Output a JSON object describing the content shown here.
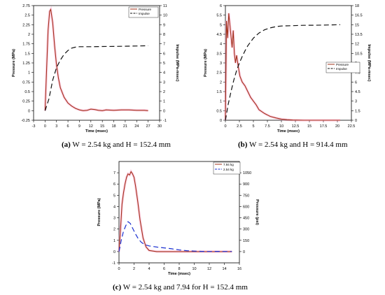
{
  "captions": [
    {
      "letter": "(a)",
      "text": "W = 2.54 kg and H = 152.4 mm"
    },
    {
      "letter": "(b)",
      "text": "W = 2.54 kg and H = 914.4 mm"
    },
    {
      "letter": "(c)",
      "text": "W = 2.54 kg and 7.94 for H = 152.4 mm"
    }
  ],
  "colors": {
    "pressure": "#a0301a",
    "impulse": "#111111",
    "series_794": "#a0301a",
    "series_254": "#1a2fd0",
    "glow": "#ff9fc8"
  },
  "chart_data": [
    {
      "type": "line",
      "xlabel": "Time (msec)",
      "ylabel": "Pressure (MPa)",
      "y2label": "Impulse (MPa-msec)",
      "xlim": [
        -3,
        30
      ],
      "xticks": [
        -3,
        0,
        3,
        6,
        9,
        12,
        15,
        18,
        21,
        24,
        27,
        30
      ],
      "ylim": [
        -0.25,
        2.75
      ],
      "yticks": [
        -0.25,
        0,
        0.25,
        0.5,
        0.75,
        1,
        1.25,
        1.5,
        1.75,
        2,
        2.25,
        2.5,
        2.75
      ],
      "y2lim": [
        -1,
        11
      ],
      "y2ticks": [
        -1,
        0,
        1,
        2,
        3,
        4,
        5,
        6,
        7,
        8,
        9,
        10,
        11
      ],
      "legend_position": "top-right",
      "series": [
        {
          "name": "Pressure",
          "axis": "left",
          "style": "solid",
          "colorKey": "pressure",
          "x": [
            0,
            0.3,
            0.8,
            1.2,
            1.5,
            2,
            2.5,
            3,
            3.5,
            4,
            5,
            6,
            7,
            8,
            9,
            10,
            11,
            12,
            13,
            14,
            15,
            16,
            18,
            20,
            22,
            24,
            26,
            27
          ],
          "y": [
            0,
            0.8,
            2.1,
            2.6,
            2.65,
            2.3,
            1.7,
            1.2,
            0.85,
            0.6,
            0.35,
            0.2,
            0.12,
            0.06,
            0.02,
            0,
            0.01,
            0.04,
            0.03,
            0.01,
            0,
            0.02,
            0.01,
            0.02,
            0.02,
            0.01,
            0.01,
            0
          ]
        },
        {
          "name": "Impulse",
          "axis": "right",
          "style": "dashed",
          "colorKey": "impulse",
          "x": [
            0,
            1,
            2,
            3,
            4,
            5,
            6,
            7,
            8,
            9,
            10,
            12,
            15,
            18,
            21,
            24,
            27
          ],
          "y": [
            0,
            1.2,
            3.2,
            4.5,
            5.3,
            5.9,
            6.3,
            6.55,
            6.65,
            6.7,
            6.7,
            6.7,
            6.72,
            6.73,
            6.75,
            6.77,
            6.8
          ]
        }
      ]
    },
    {
      "type": "line",
      "xlabel": "Time (msec)",
      "ylabel": "Pressure (MPa)",
      "y2label": "Impulse (MPa-msec)",
      "xlim": [
        0,
        22.5
      ],
      "xticks": [
        0,
        2.5,
        5,
        7.5,
        10,
        12.5,
        15,
        17.5,
        20,
        22.5
      ],
      "ylim": [
        0,
        6
      ],
      "yticks": [
        0,
        0.5,
        1,
        1.5,
        2,
        2.5,
        3,
        3.5,
        4,
        4.5,
        5,
        5.5,
        6
      ],
      "y2lim": [
        0,
        18
      ],
      "y2ticks": [
        0,
        1.5,
        3,
        4.5,
        6,
        7.5,
        9,
        10.5,
        12,
        13.5,
        15,
        16.5,
        18
      ],
      "legend_position": "center-right",
      "series": [
        {
          "name": "Pressure",
          "axis": "left",
          "style": "solid",
          "colorKey": "pressure",
          "x": [
            0,
            0.2,
            0.4,
            0.6,
            0.8,
            1,
            1.2,
            1.4,
            1.6,
            1.8,
            2,
            2.3,
            2.6,
            3,
            3.5,
            4,
            4.5,
            5,
            5.5,
            6,
            7,
            8,
            9,
            10,
            11,
            12,
            14,
            16,
            18,
            20.5
          ],
          "y": [
            0,
            5.2,
            4.3,
            5.6,
            5.0,
            4.4,
            3.8,
            4.7,
            3.5,
            3.0,
            3.4,
            2.8,
            2.3,
            2.0,
            1.8,
            1.5,
            1.2,
            1.0,
            0.8,
            0.55,
            0.35,
            0.2,
            0.12,
            0.06,
            0.03,
            0.01,
            0,
            0,
            0,
            0
          ]
        },
        {
          "name": "Impulse",
          "axis": "right",
          "style": "dashed",
          "colorKey": "impulse",
          "x": [
            0,
            0.5,
            1,
            1.5,
            2,
            2.5,
            3,
            3.5,
            4,
            5,
            6,
            7,
            8,
            9,
            10,
            12,
            14,
            16,
            18,
            20.5
          ],
          "y": [
            0,
            2.5,
            4.5,
            6.3,
            7.8,
            9.0,
            10.0,
            10.9,
            11.7,
            12.9,
            13.7,
            14.2,
            14.5,
            14.7,
            14.8,
            14.85,
            14.9,
            14.92,
            14.95,
            15.0
          ]
        }
      ]
    },
    {
      "type": "line",
      "xlabel": "Time (msec)",
      "ylabel": "Pressure (MPa)",
      "y2label": "Pressure (psi)",
      "xlim": [
        0,
        16
      ],
      "xticks": [
        0,
        2,
        4,
        6,
        8,
        10,
        12,
        14,
        16
      ],
      "ylim": [
        -1,
        8
      ],
      "yticks": [
        -1,
        0,
        1,
        2,
        3,
        4,
        5,
        6,
        7
      ],
      "y2ticks": [
        0,
        150,
        300,
        450,
        600,
        750,
        900,
        1050
      ],
      "legend_position": "top-right",
      "series": [
        {
          "name": "7.94 kg",
          "axis": "left",
          "style": "solid",
          "colorKey": "series_794",
          "x": [
            0,
            0.2,
            0.4,
            0.6,
            0.8,
            1,
            1.2,
            1.4,
            1.6,
            1.8,
            2,
            2.2,
            2.5,
            2.8,
            3.2,
            3.6,
            4,
            5,
            6,
            8,
            10,
            12,
            14,
            15
          ],
          "y": [
            0,
            2.0,
            4.2,
            5.2,
            6.0,
            6.6,
            6.9,
            6.8,
            7.1,
            6.9,
            6.6,
            5.8,
            4.4,
            2.8,
            1.2,
            0.4,
            0.1,
            0,
            0,
            0,
            0,
            0,
            0,
            0
          ]
        },
        {
          "name": "2.54 kg",
          "axis": "left",
          "style": "dashed",
          "colorKey": "series_254",
          "x": [
            0,
            0.3,
            0.6,
            0.9,
            1.2,
            1.5,
            1.8,
            2.2,
            2.6,
            3,
            3.5,
            4,
            5,
            6,
            7,
            8,
            9,
            10,
            11,
            12,
            13,
            14,
            15
          ],
          "y": [
            0,
            1.0,
            1.8,
            2.3,
            2.65,
            2.5,
            2.1,
            1.55,
            1.1,
            0.8,
            0.6,
            0.5,
            0.4,
            0.33,
            0.25,
            0.15,
            0.08,
            0.04,
            0.02,
            0.01,
            0.02,
            0.01,
            0.01
          ]
        }
      ]
    }
  ]
}
